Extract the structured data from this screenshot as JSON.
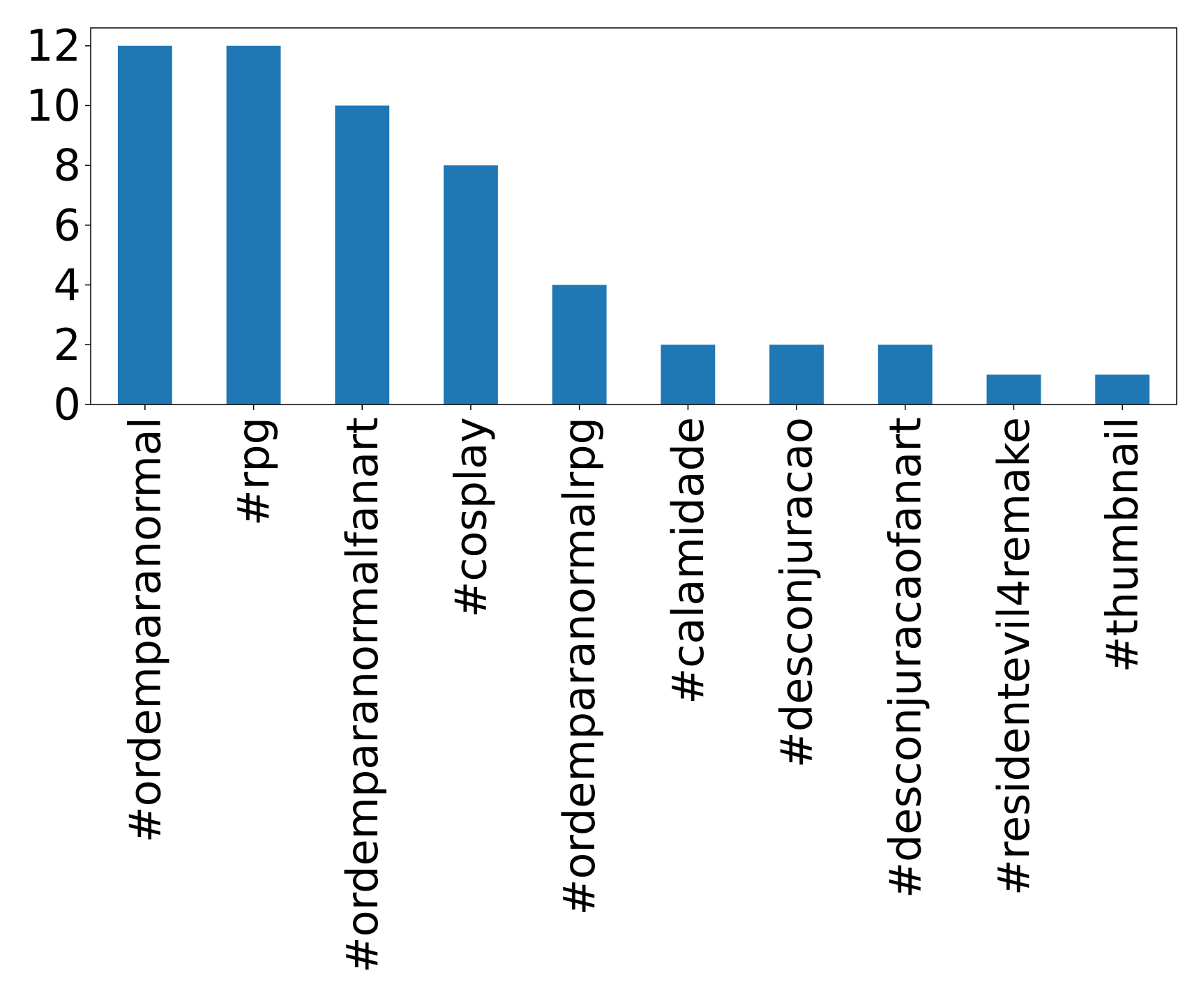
{
  "chart_data": {
    "type": "bar",
    "title": "",
    "xlabel": "",
    "ylabel": "",
    "categories": [
      "#ordemparanormal",
      "#rpg",
      "#ordemparanormalfanart",
      "#cosplay",
      "#ordemparanormalrpg",
      "#calamidade",
      "#desconjuracao",
      "#desconjuracaofanart",
      "#residentevil4remake",
      "#thumbnail"
    ],
    "values": [
      12,
      12,
      10,
      8,
      4,
      2,
      2,
      2,
      1,
      1
    ],
    "ylim": [
      0,
      12.6
    ],
    "yticks": [
      0,
      2,
      4,
      6,
      8,
      10,
      12
    ],
    "ytick_labels": [
      "0",
      "2",
      "4",
      "6",
      "8",
      "10",
      "12"
    ],
    "bar_color": "#1f77b4",
    "grid": false,
    "legend": "none"
  }
}
